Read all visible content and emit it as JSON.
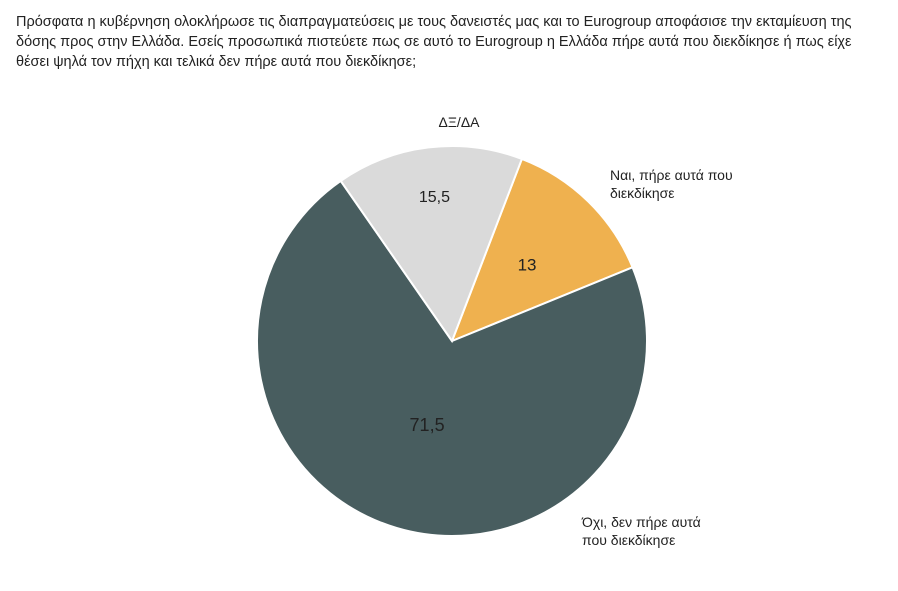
{
  "question": "Πρόσφατα η κυβέρνηση ολοκλήρωσε τις διαπραγματεύσεις με τους δανειστές μας και το Eurogroup αποφάσισε την εκταμίευση της δόσης προς στην Ελλάδα. Εσείς προσωπικά πιστεύετε πως σε αυτό το Eurogroup η Ελλάδα πήρε αυτά που διεκδίκησε ή πως είχε θέσει ψηλά τον πήχη και τελικά δεν πήρε αυτά που διεκδίκησε;",
  "chart_data": {
    "type": "pie",
    "title": "",
    "slices": [
      {
        "label_lines": [
          "Ναι, πήρε αυτά που",
          "διεκδίκησε"
        ],
        "value": 13,
        "value_label": "13",
        "color": "#efb14f"
      },
      {
        "label_lines": [
          "Όχι, δεν πήρε αυτά",
          "που διεκδίκησε"
        ],
        "value": 71.5,
        "value_label": "71,5",
        "color": "#485d5f"
      },
      {
        "label_lines": [
          "ΔΞ/ΔΑ"
        ],
        "value": 15.5,
        "value_label": "15,5",
        "color": "#dadada"
      }
    ]
  }
}
